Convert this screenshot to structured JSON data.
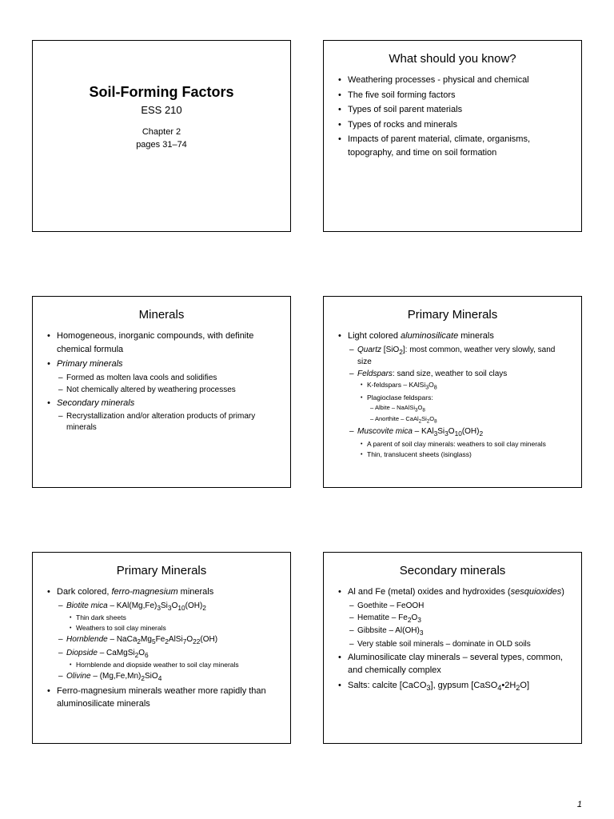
{
  "page_number": "1",
  "slides": [
    {
      "title_big": "Soil-Forming Factors",
      "subtitle": "ESS 210",
      "line2": "Chapter 2",
      "line3": "pages 31–74"
    },
    {
      "title": "What should you know?",
      "bullets": [
        {
          "lvl": 1,
          "txt": "Weathering processes - physical and chemical"
        },
        {
          "lvl": 1,
          "txt": "The five soil forming factors"
        },
        {
          "lvl": 1,
          "txt": "Types of soil parent materials"
        },
        {
          "lvl": 1,
          "txt": "Types of rocks and minerals"
        },
        {
          "lvl": 1,
          "txt": "Impacts of parent material, climate, organisms, topography, and time on soil formation"
        }
      ]
    },
    {
      "title": "Minerals",
      "bullets": [
        {
          "lvl": 1,
          "txt": "Homogeneous, inorganic compounds, with definite chemical formula"
        },
        {
          "lvl": 1,
          "txt": "Primary minerals",
          "italic": true
        },
        {
          "lvl": 2,
          "txt": "Formed as molten lava cools and solidifies"
        },
        {
          "lvl": 2,
          "txt": "Not chemically altered by weathering processes"
        },
        {
          "lvl": 1,
          "txt": "Secondary minerals",
          "italic": true
        },
        {
          "lvl": 2,
          "txt": "Recrystallization and/or alteration products of primary minerals"
        }
      ]
    },
    {
      "title": "Primary Minerals",
      "bullets": [
        {
          "lvl": 1,
          "html": "Light colored <i>aluminosilicate</i> minerals"
        },
        {
          "lvl": 2,
          "html": "<i>Quartz</i> [SiO<sub>2</sub>]: most common, weather very slowly, sand size"
        },
        {
          "lvl": 2,
          "html": "<i>Feldspars</i>: sand size, weather to soil clays"
        },
        {
          "lvl": 3,
          "html": "K-feldspars – KAlSi<sub>3</sub>O<sub>8</sub>"
        },
        {
          "lvl": 3,
          "txt": "Plagioclase feldspars:"
        },
        {
          "lvl": 4,
          "html": "Albite – NaAlSi<sub>3</sub>O<sub>8</sub>"
        },
        {
          "lvl": 4,
          "html": "Anorthite – CaAl<sub>2</sub>Si<sub>2</sub>O<sub>8</sub>"
        },
        {
          "lvl": 2,
          "html": "<i>Muscovite mica</i> – KAl<sub>3</sub>Si<sub>3</sub>O<sub>10</sub>(OH)<sub>2</sub>"
        },
        {
          "lvl": 3,
          "txt": "A parent of soil clay minerals: weathers to soil clay minerals"
        },
        {
          "lvl": 3,
          "txt": "Thin, translucent sheets (isinglass)"
        }
      ]
    },
    {
      "title": "Primary Minerals",
      "bullets": [
        {
          "lvl": 1,
          "html": "Dark colored, <i>ferro-magnesium</i> minerals"
        },
        {
          "lvl": 2,
          "html": "<i>Biotite mica</i> – KAl(Mg,Fe)<sub>3</sub>Si<sub>3</sub>O<sub>10</sub>(OH)<sub>2</sub>"
        },
        {
          "lvl": 3,
          "txt": "Thin dark sheets"
        },
        {
          "lvl": 3,
          "txt": "Weathers to soil clay minerals"
        },
        {
          "lvl": 2,
          "html": "<i>Hornblende</i> – NaCa<sub>2</sub>Mg<sub>5</sub>Fe<sub>2</sub>AlSi<sub>7</sub>O<sub>22</sub>(OH)"
        },
        {
          "lvl": 2,
          "html": "<i>Diopside</i> – CaMgSi<sub>2</sub>O<sub>6</sub>"
        },
        {
          "lvl": 3,
          "txt": "Hornblende and diopside weather to soil clay minerals"
        },
        {
          "lvl": 2,
          "html": "<i>Olivine</i> – (Mg,Fe,Mn)<sub>2</sub>SiO<sub>4</sub>"
        },
        {
          "lvl": 1,
          "txt": "Ferro-magnesium minerals weather more rapidly than aluminosilicate minerals"
        }
      ]
    },
    {
      "title": "Secondary minerals",
      "bullets": [
        {
          "lvl": 1,
          "html": "Al and Fe (metal) oxides and hydroxides (<i>sesquioxides</i>)"
        },
        {
          "lvl": 2,
          "txt": "Goethite – FeOOH"
        },
        {
          "lvl": 2,
          "html": "Hematite – Fe<sub>2</sub>O<sub>3</sub>"
        },
        {
          "lvl": 2,
          "html": "Gibbsite – Al(OH)<sub>3</sub>"
        },
        {
          "lvl": 2,
          "txt": "Very stable soil minerals – dominate in OLD soils"
        },
        {
          "lvl": 1,
          "txt": "Aluminosilicate clay minerals – several types, common, and chemically complex"
        },
        {
          "lvl": 1,
          "html": "Salts: calcite [CaCO<sub>3</sub>], gypsum [CaSO<sub>4</sub>•2H<sub>2</sub>O]"
        }
      ]
    }
  ]
}
